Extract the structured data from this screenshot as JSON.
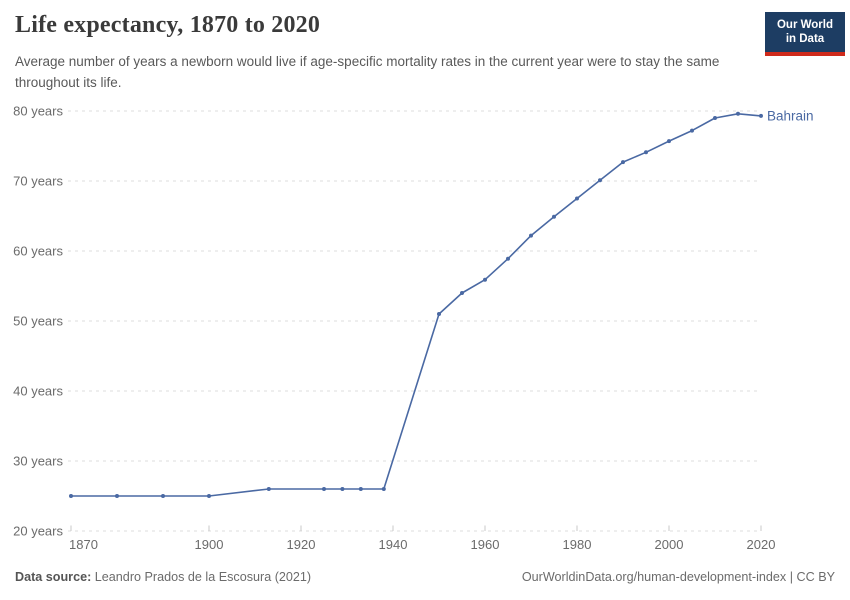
{
  "header": {
    "title": "Life expectancy, 1870 to 2020",
    "subtitle": "Average number of years a newborn would live if age-specific mortality rates in the current year were to stay the same throughout its life.",
    "logo": {
      "line1": "Our World",
      "line2": "in Data",
      "bg_color": "#1d3d63",
      "bar_color": "#cf2a1b"
    }
  },
  "chart_data": {
    "type": "line",
    "title": "Life expectancy, 1870 to 2020",
    "xlabel": "",
    "ylabel": "",
    "xlim": [
      1870,
      2020
    ],
    "ylim": [
      20,
      80
    ],
    "grid": "horizontal dashed",
    "line_color": "#4a69a3",
    "grid_color": "#dddddd",
    "tick_color": "#c8c8c8",
    "end_label": "Bahrain",
    "x_ticks": [
      1870,
      1900,
      1920,
      1940,
      1960,
      1980,
      2000,
      2020
    ],
    "x_tick_labels": [
      "1870",
      "1900",
      "1920",
      "1940",
      "1960",
      "1980",
      "2000",
      "2020"
    ],
    "y_ticks": [
      20,
      30,
      40,
      50,
      60,
      70,
      80
    ],
    "y_tick_labels": [
      "20 years",
      "30 years",
      "40 years",
      "50 years",
      "60 years",
      "70 years",
      "80 years"
    ],
    "series": [
      {
        "name": "Bahrain",
        "x": [
          1870,
          1880,
          1890,
          1900,
          1913,
          1925,
          1929,
          1933,
          1938,
          1950,
          1955,
          1960,
          1965,
          1970,
          1975,
          1980,
          1985,
          1990,
          1995,
          2000,
          2005,
          2010,
          2015,
          2020
        ],
        "values": [
          25,
          25,
          25,
          25,
          26,
          26,
          26,
          26,
          26,
          51,
          54,
          55.9,
          58.9,
          62.2,
          64.9,
          67.5,
          70.1,
          72.7,
          74.1,
          75.7,
          77.2,
          79,
          79.6,
          79.3
        ]
      }
    ]
  },
  "footer": {
    "source_label": "Data source:",
    "source_text": " Leandro Prados de la Escosura (2021)",
    "right_text": "OurWorldinData.org/human-development-index | CC BY"
  }
}
